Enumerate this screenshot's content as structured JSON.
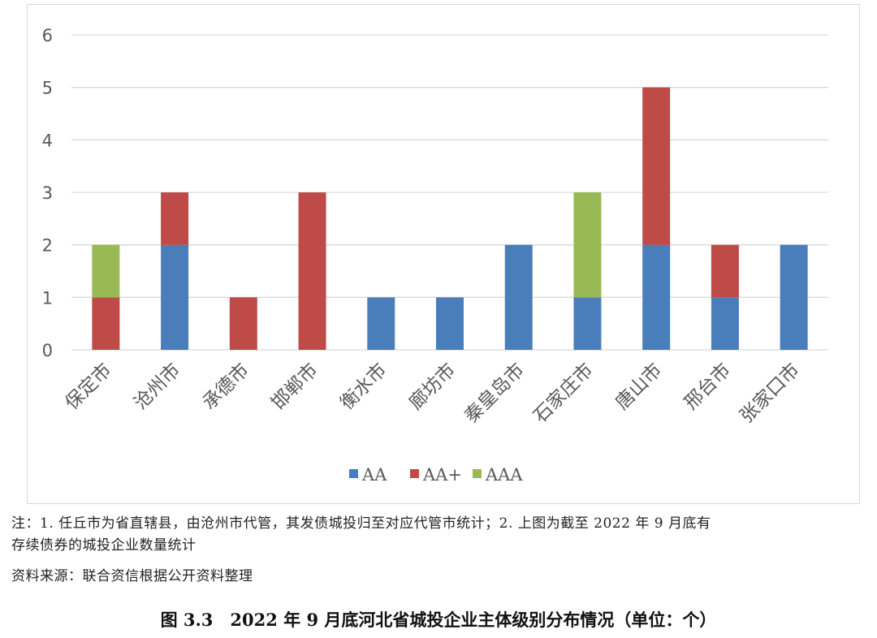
{
  "chart_data": {
    "type": "bar",
    "stacked": true,
    "categories": [
      "保定市",
      "沧州市",
      "承德市",
      "邯郸市",
      "衡水市",
      "廊坊市",
      "秦皇岛市",
      "石家庄市",
      "唐山市",
      "邢台市",
      "张家口市"
    ],
    "series": [
      {
        "name": "AA",
        "color": "#4a7ebb",
        "values": [
          0,
          2,
          0,
          0,
          1,
          1,
          2,
          1,
          2,
          1,
          2
        ]
      },
      {
        "name": "AA+",
        "color": "#be4b48",
        "values": [
          1,
          1,
          1,
          3,
          0,
          0,
          0,
          0,
          3,
          1,
          0
        ]
      },
      {
        "name": "AAA",
        "color": "#98b954",
        "values": [
          1,
          0,
          0,
          0,
          0,
          0,
          0,
          2,
          0,
          0,
          0
        ]
      }
    ],
    "yticks": [
      "0",
      "1",
      "2",
      "3",
      "4",
      "5",
      "6"
    ],
    "ylim": [
      0,
      6
    ],
    "grid": true,
    "legend_position": "bottom"
  },
  "note_line1": "注：1. 任丘市为省直辖县，由沧州市代管，其发债城投归至对应代管市统计；2. 上图为截至 2022 年 9 月底有",
  "note_line2": "存续债券的城投企业数量统计",
  "source": "资料来源：联合资信根据公开资料整理",
  "caption": "图 3.3　2022 年 9 月底河北省城投企业主体级别分布情况（单位：个）"
}
